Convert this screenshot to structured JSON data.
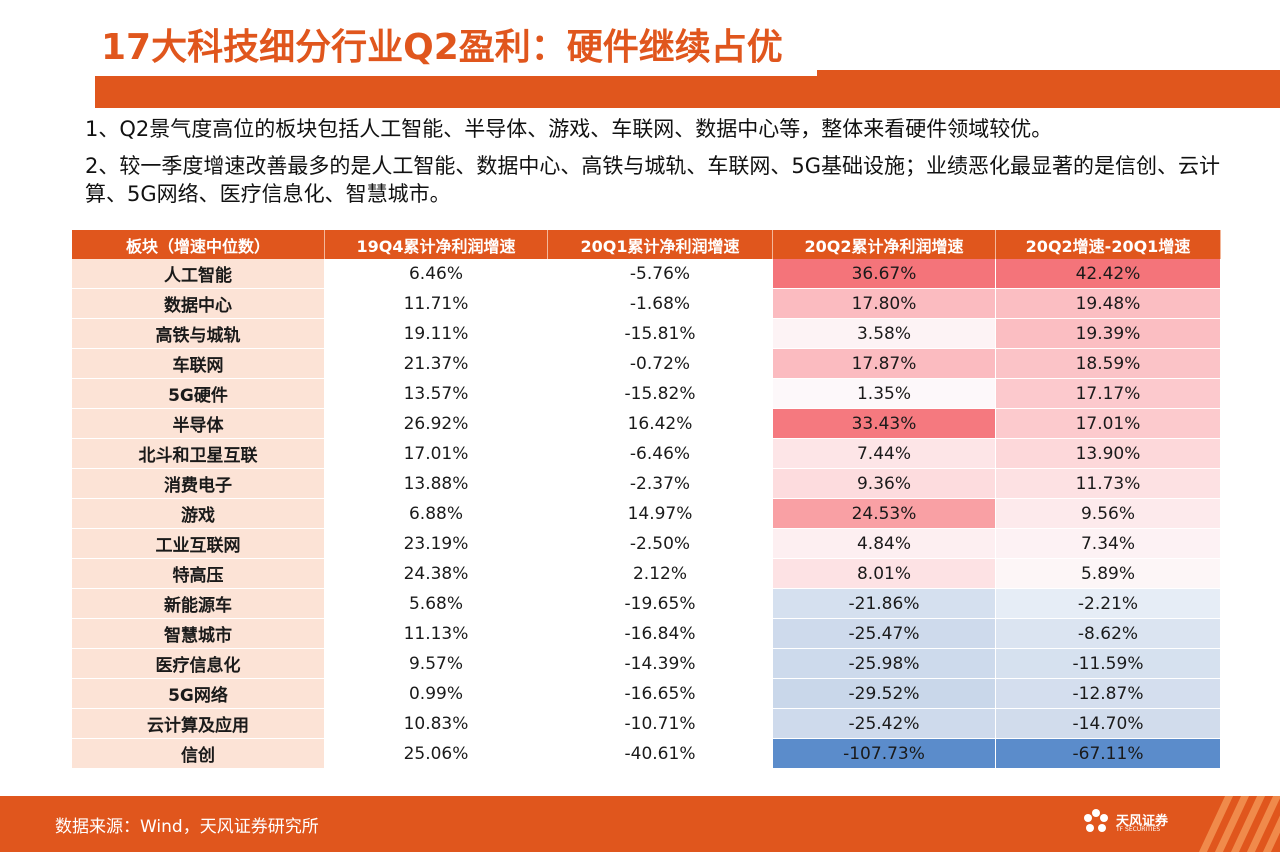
{
  "title": "17大科技细分行业Q2盈利：硬件继续占优",
  "bullets": [
    "1、Q2景气度高位的板块包括人工智能、半导体、游戏、车联网、数据中心等，整体来看硬件领域较优。",
    "2、较一季度增速改善最多的是人工智能、数据中心、高铁与城轨、车联网、5G基础设施；业绩恶化最显著的是信创、云计算、5G网络、医疗信息化、智慧城市。"
  ],
  "table": {
    "headers": [
      "板块（增速中位数）",
      "19Q4累计净利润增速",
      "20Q1累计净利润增速",
      "20Q2累计净利润增速",
      "20Q2增速-20Q1增速"
    ],
    "rows": [
      {
        "name": "人工智能",
        "v1": "6.46%",
        "v2": "-5.76%",
        "v3": "36.67%",
        "v4": "42.42%",
        "c3": "#f4747a",
        "c4": "#f4747a"
      },
      {
        "name": "数据中心",
        "v1": "11.71%",
        "v2": "-1.68%",
        "v3": "17.80%",
        "v4": "19.48%",
        "c3": "#fbbbc0",
        "c4": "#fbbec2"
      },
      {
        "name": "高铁与城轨",
        "v1": "19.11%",
        "v2": "-15.81%",
        "v3": "3.58%",
        "v4": "19.39%",
        "c3": "#fdf3f5",
        "c4": "#fbbec2"
      },
      {
        "name": "车联网",
        "v1": "21.37%",
        "v2": "-0.72%",
        "v3": "17.87%",
        "v4": "18.59%",
        "c3": "#fbbbc0",
        "c4": "#fbc3c7"
      },
      {
        "name": "5G硬件",
        "v1": "13.57%",
        "v2": "-15.82%",
        "v3": "1.35%",
        "v4": "17.17%",
        "c3": "#fdf8fa",
        "c4": "#fcc9cd"
      },
      {
        "name": "半导体",
        "v1": "26.92%",
        "v2": "16.42%",
        "v3": "33.43%",
        "v4": "17.01%",
        "c3": "#f5797f",
        "c4": "#fccacd"
      },
      {
        "name": "北斗和卫星互联",
        "v1": "17.01%",
        "v2": "-6.46%",
        "v3": "7.44%",
        "v4": "13.90%",
        "c3": "#fde5e7",
        "c4": "#fdd8da"
      },
      {
        "name": "消费电子",
        "v1": "13.88%",
        "v2": "-2.37%",
        "v3": "9.36%",
        "v4": "11.73%",
        "c3": "#fddcde",
        "c4": "#fde1e3"
      },
      {
        "name": "游戏",
        "v1": "6.88%",
        "v2": "14.97%",
        "v3": "24.53%",
        "v4": "9.56%",
        "c3": "#f9a0a4",
        "c4": "#fdeaec"
      },
      {
        "name": "工业互联网",
        "v1": "23.19%",
        "v2": "-2.50%",
        "v3": "4.84%",
        "v4": "7.34%",
        "c3": "#fdeff1",
        "c4": "#fdf2f4"
      },
      {
        "name": "特高压",
        "v1": "24.38%",
        "v2": "2.12%",
        "v3": "8.01%",
        "v4": "5.89%",
        "c3": "#fde2e4",
        "c4": "#fdf6f7"
      },
      {
        "name": "新能源车",
        "v1": "5.68%",
        "v2": "-19.65%",
        "v3": "-21.86%",
        "v4": "-2.21%",
        "c3": "#d5e0ef",
        "c4": "#e6edf6"
      },
      {
        "name": "智慧城市",
        "v1": "11.13%",
        "v2": "-16.84%",
        "v3": "-25.47%",
        "v4": "-8.62%",
        "c3": "#cedaec",
        "c4": "#dbe4f1"
      },
      {
        "name": "医疗信息化",
        "v1": "9.57%",
        "v2": "-14.39%",
        "v3": "-25.98%",
        "v4": "-11.59%",
        "c3": "#cddaec",
        "c4": "#d6e1ef"
      },
      {
        "name": "5G网络",
        "v1": "0.99%",
        "v2": "-16.65%",
        "v3": "-29.52%",
        "v4": "-12.87%",
        "c3": "#c9d7ea",
        "c4": "#d4deee"
      },
      {
        "name": "云计算及应用",
        "v1": "10.83%",
        "v2": "-10.71%",
        "v3": "-25.42%",
        "v4": "-14.70%",
        "c3": "#cedaec",
        "c4": "#d1dcec"
      },
      {
        "name": "信创",
        "v1": "25.06%",
        "v2": "-40.61%",
        "v3": "-107.73%",
        "v4": "-67.11%",
        "c3": "#5b8ccb",
        "c4": "#5b8ccb"
      }
    ]
  },
  "footer": {
    "source": "数据来源：Wind，天风证券研究所",
    "logo_text": "天风证券",
    "logo_sub": "TF SECURITIES"
  },
  "colors": {
    "brand": "#e0561d",
    "name_cell": "#fce3d6"
  },
  "icons": [
    "tf-securities-logo"
  ]
}
